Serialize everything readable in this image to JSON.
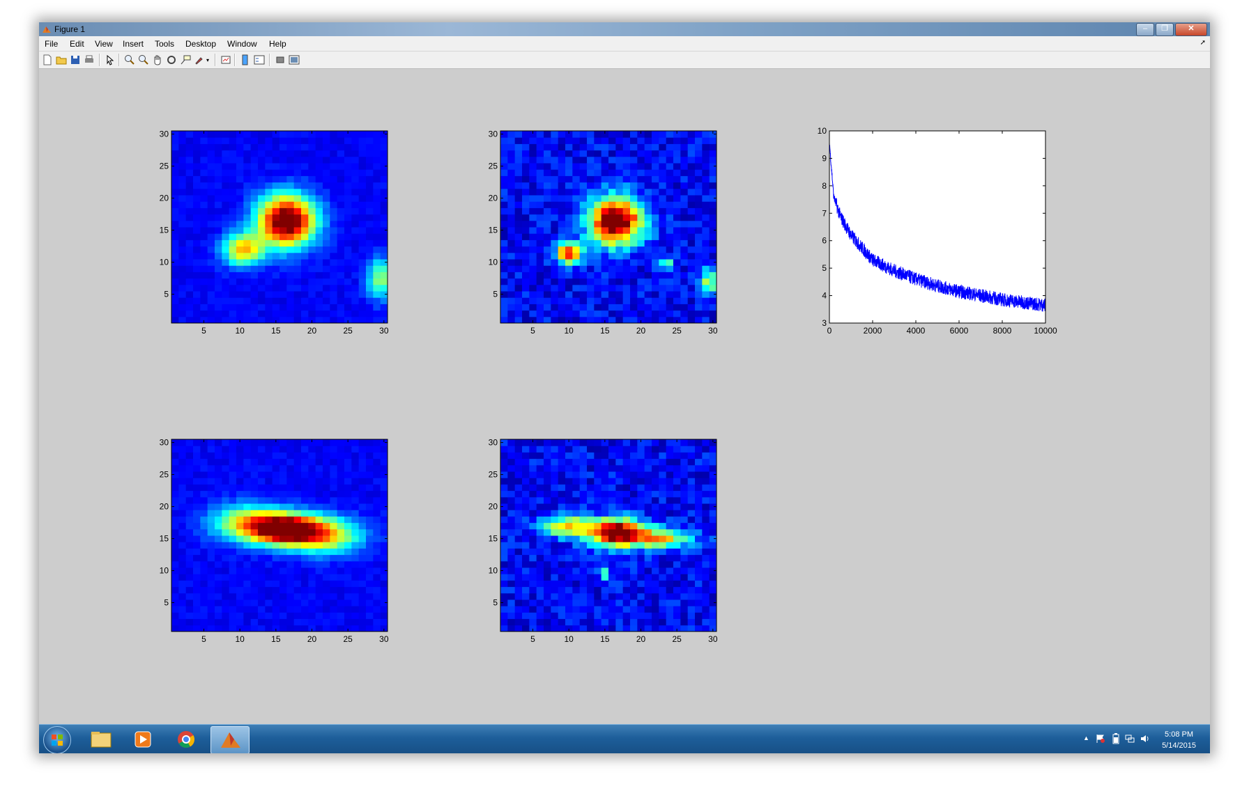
{
  "window": {
    "title": "Figure 1"
  },
  "menu": [
    "File",
    "Edit",
    "View",
    "Insert",
    "Tools",
    "Desktop",
    "Window",
    "Help"
  ],
  "toolbar_icons": [
    "new-file-icon",
    "open-folder-icon",
    "save-icon",
    "print-icon",
    "edit-plot-arrow-icon",
    "zoom-in-icon",
    "zoom-out-icon",
    "pan-hand-icon",
    "rotate-3d-icon",
    "data-cursor-icon",
    "brush-icon",
    "link-plot-icon",
    "colorbar-icon",
    "legend-icon",
    "hide-plot-tools-icon",
    "show-plot-tools-icon"
  ],
  "colors": {
    "title_bar": "#7fa2c6",
    "figure_bg": "#cdcdcd",
    "line": "#0000ff",
    "taskbar": "#1d5e9a"
  },
  "colormap": "jet",
  "chart_data": [
    {
      "type": "heatmap",
      "title": "",
      "xlim": [
        0.5,
        30.5
      ],
      "ylim": [
        0.5,
        30.5
      ],
      "x_ticks": [
        "5",
        "10",
        "15",
        "20",
        "25",
        "30"
      ],
      "y_ticks": [
        "5",
        "10",
        "15",
        "20",
        "25",
        "30"
      ],
      "blobs": [
        {
          "x": 16.5,
          "y": 16.5,
          "amp": 1.0,
          "sx": 2.8,
          "sy": 2.8
        },
        {
          "x": 10.5,
          "y": 12.0,
          "amp": 0.55,
          "sx": 2.0,
          "sy": 1.8
        },
        {
          "x": 29.5,
          "y": 7.5,
          "amp": 0.4,
          "sx": 1.3,
          "sy": 2.2
        }
      ],
      "noise": 0.03
    },
    {
      "type": "heatmap",
      "title": "",
      "xlim": [
        0.5,
        30.5
      ],
      "ylim": [
        0.5,
        30.5
      ],
      "x_ticks": [
        "5",
        "10",
        "15",
        "20",
        "25",
        "30"
      ],
      "y_ticks": [
        "5",
        "10",
        "15",
        "20",
        "25",
        "30"
      ],
      "blobs": [
        {
          "x": 16.5,
          "y": 16.5,
          "amp": 1.0,
          "sx": 2.6,
          "sy": 2.6
        },
        {
          "x": 10.0,
          "y": 11.5,
          "amp": 0.75,
          "sx": 1.2,
          "sy": 1.2
        },
        {
          "x": 23.5,
          "y": 10.0,
          "amp": 0.3,
          "sx": 0.8,
          "sy": 0.8
        },
        {
          "x": 29.5,
          "y": 7.0,
          "amp": 0.4,
          "sx": 1.0,
          "sy": 1.4
        }
      ],
      "noise": 0.08
    },
    {
      "type": "line",
      "title": "",
      "xlim": [
        0,
        10000
      ],
      "ylim": [
        3,
        10
      ],
      "x_ticks": [
        "0",
        "2000",
        "4000",
        "6000",
        "8000",
        "10000"
      ],
      "y_ticks": [
        "3",
        "4",
        "5",
        "6",
        "7",
        "8",
        "9",
        "10"
      ],
      "series": [
        {
          "color": "#0000ff",
          "curve": "decay",
          "start": 9.6,
          "asymptote": 3.3,
          "points": [
            [
              0,
              9.6
            ],
            [
              200,
              7.6
            ],
            [
              500,
              6.9
            ],
            [
              1000,
              6.2
            ],
            [
              2000,
              5.3
            ],
            [
              3000,
              4.9
            ],
            [
              4000,
              4.6
            ],
            [
              5000,
              4.35
            ],
            [
              6000,
              4.15
            ],
            [
              7000,
              4.0
            ],
            [
              8000,
              3.85
            ],
            [
              9000,
              3.75
            ],
            [
              10000,
              3.65
            ]
          ],
          "noise_band": 0.25
        }
      ]
    },
    {
      "type": "heatmap",
      "title": "",
      "xlim": [
        0.5,
        30.5
      ],
      "ylim": [
        0.5,
        30.5
      ],
      "x_ticks": [
        "5",
        "10",
        "15",
        "20",
        "25",
        "30"
      ],
      "y_ticks": [
        "5",
        "10",
        "15",
        "20",
        "25",
        "30"
      ],
      "blobs": [
        {
          "x": 16.5,
          "y": 16.5,
          "amp": 1.0,
          "sx": 3.2,
          "sy": 1.6
        },
        {
          "x": 11.0,
          "y": 17.5,
          "amp": 0.5,
          "sx": 3.5,
          "sy": 2.0
        },
        {
          "x": 22.0,
          "y": 15.5,
          "amp": 0.5,
          "sx": 3.5,
          "sy": 2.0
        }
      ],
      "noise": 0.03
    },
    {
      "type": "heatmap",
      "title": "",
      "xlim": [
        0.5,
        30.5
      ],
      "ylim": [
        0.5,
        30.5
      ],
      "x_ticks": [
        "5",
        "10",
        "15",
        "20",
        "25",
        "30"
      ],
      "y_ticks": [
        "5",
        "10",
        "15",
        "20",
        "25",
        "30"
      ],
      "blobs": [
        {
          "x": 16.5,
          "y": 16.0,
          "amp": 1.0,
          "sx": 2.8,
          "sy": 1.5
        },
        {
          "x": 9.5,
          "y": 17.0,
          "amp": 0.55,
          "sx": 2.2,
          "sy": 1.1
        },
        {
          "x": 23.0,
          "y": 15.0,
          "amp": 0.5,
          "sx": 3.0,
          "sy": 1.1
        },
        {
          "x": 15.0,
          "y": 9.5,
          "amp": 0.35,
          "sx": 0.6,
          "sy": 0.6
        }
      ],
      "noise": 0.08
    }
  ],
  "taskbar": {
    "apps": [
      "start-orb",
      "windows-explorer",
      "media-player",
      "chrome",
      "matlab"
    ],
    "time": "5:08 PM",
    "date": "5/14/2015"
  }
}
